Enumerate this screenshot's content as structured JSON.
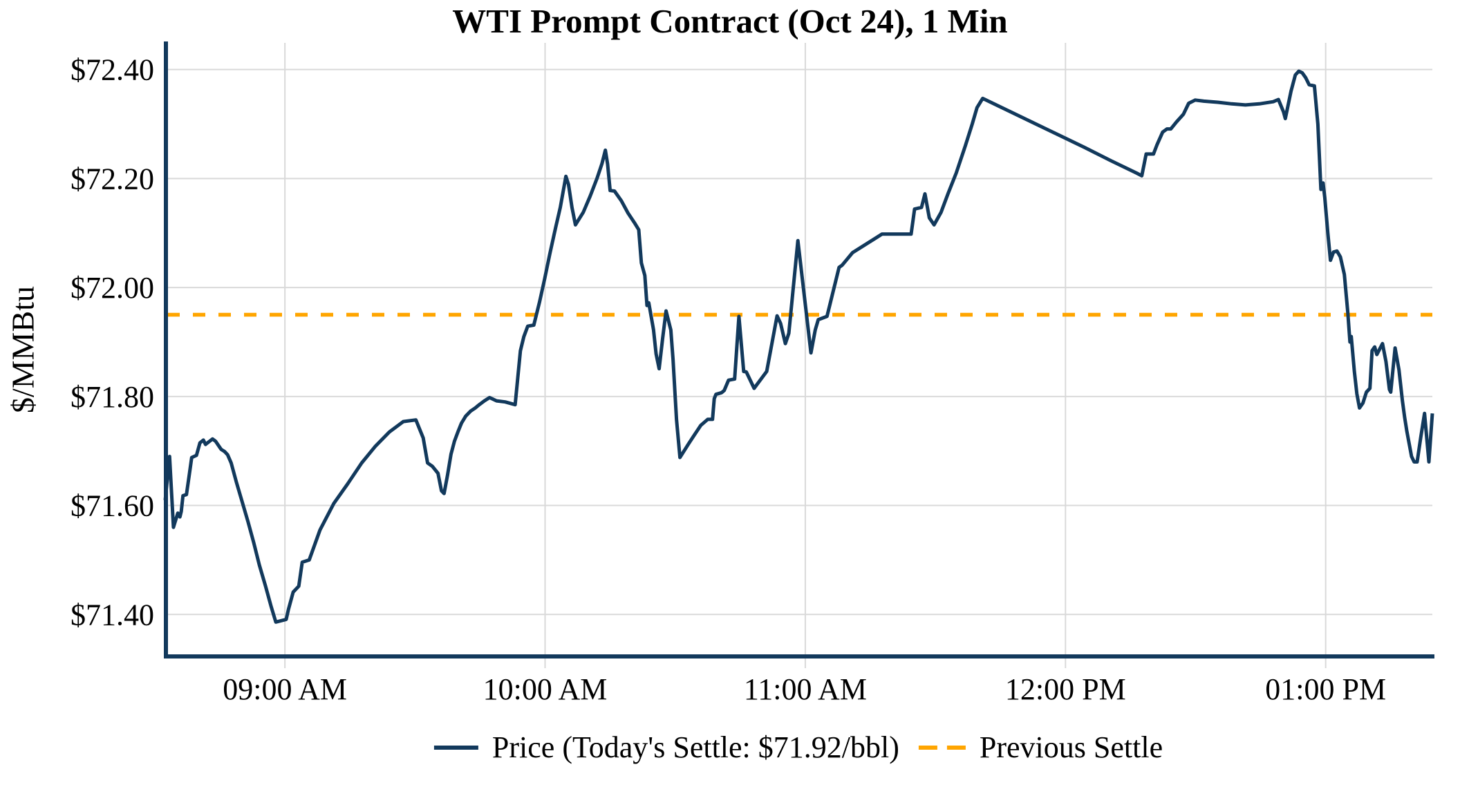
{
  "header": {
    "title": "WTI Prompt Contract (Oct 24), 1 Min"
  },
  "y_axis": {
    "label": "$/MMBtu"
  },
  "legend": {
    "price_label": "Price (Today's Settle: $71.92/bbl)",
    "previous_settle_label": "Previous Settle"
  },
  "colors": {
    "price_line": "#12395c",
    "previous_settle_line": "#ffa500",
    "grid": "#d9d9d9",
    "axis_spine": "#12395c",
    "text": "#000000"
  },
  "chart_data": {
    "type": "line",
    "title": "WTI Prompt Contract (Oct 24), 1 Min",
    "xlabel": "",
    "ylabel": "$/MMBtu",
    "ylim": [
      71.323,
      72.449
    ],
    "xlim_minutes": [
      0,
      292.2
    ],
    "grid": true,
    "legend_position": "bottom-center",
    "todays_settle": 71.92,
    "previous_settle": 71.95,
    "x_ticks": [
      {
        "t": 27.6,
        "label": "09:00 AM"
      },
      {
        "t": 87.6,
        "label": "10:00 AM"
      },
      {
        "t": 147.6,
        "label": "11:00 AM"
      },
      {
        "t": 207.6,
        "label": "12:00 PM"
      },
      {
        "t": 267.6,
        "label": "01:00 PM"
      }
    ],
    "y_ticks": [
      {
        "value": 71.4,
        "label": "$71.40"
      },
      {
        "value": 71.6,
        "label": "$71.60"
      },
      {
        "value": 71.8,
        "label": "$71.80"
      },
      {
        "value": 72.0,
        "label": "$72.00"
      },
      {
        "value": 72.2,
        "label": "$72.20"
      },
      {
        "value": 72.4,
        "label": "$72.40"
      }
    ],
    "series": [
      {
        "name": "Price (Today's Settle: $71.92/bbl)",
        "style": "solid",
        "color": "#12395c",
        "points": [
          [
            0,
            71.61
          ],
          [
            1,
            71.69
          ],
          [
            1.9,
            71.56
          ],
          [
            2.9,
            71.586
          ],
          [
            3.4,
            71.579
          ],
          [
            3.7,
            71.589
          ],
          [
            4.1,
            71.618
          ],
          [
            4.9,
            71.62
          ],
          [
            5.6,
            71.659
          ],
          [
            6.1,
            71.688
          ],
          [
            7.2,
            71.692
          ],
          [
            8,
            71.715
          ],
          [
            8.8,
            71.72
          ],
          [
            9.3,
            71.712
          ],
          [
            10.9,
            71.722
          ],
          [
            11.6,
            71.718
          ],
          [
            12.9,
            71.703
          ],
          [
            13.7,
            71.699
          ],
          [
            14.4,
            71.693
          ],
          [
            15.2,
            71.678
          ],
          [
            16.4,
            71.643
          ],
          [
            17.7,
            71.608
          ],
          [
            19.1,
            71.57
          ],
          [
            20.4,
            71.532
          ],
          [
            21.7,
            71.491
          ],
          [
            23.1,
            71.453
          ],
          [
            24.4,
            71.415
          ],
          [
            25.5,
            71.386
          ],
          [
            27.9,
            71.391
          ],
          [
            28.4,
            71.409
          ],
          [
            29.5,
            71.441
          ],
          [
            30.8,
            71.452
          ],
          [
            31.6,
            71.496
          ],
          [
            33.2,
            71.5
          ],
          [
            35.7,
            71.555
          ],
          [
            38.9,
            71.604
          ],
          [
            42.1,
            71.64
          ],
          [
            45.3,
            71.678
          ],
          [
            48.5,
            71.709
          ],
          [
            51.7,
            71.735
          ],
          [
            54.9,
            71.754
          ],
          [
            57.8,
            71.757
          ],
          [
            59.5,
            71.724
          ],
          [
            60.5,
            71.678
          ],
          [
            61.6,
            71.672
          ],
          [
            62.9,
            71.659
          ],
          [
            63.7,
            71.627
          ],
          [
            64.3,
            71.622
          ],
          [
            65.1,
            71.656
          ],
          [
            65.9,
            71.694
          ],
          [
            66.7,
            71.718
          ],
          [
            67.5,
            71.735
          ],
          [
            68.3,
            71.751
          ],
          [
            69.3,
            71.764
          ],
          [
            70.4,
            71.773
          ],
          [
            71.5,
            71.779
          ],
          [
            72.4,
            71.785
          ],
          [
            73.6,
            71.792
          ],
          [
            74.8,
            71.798
          ],
          [
            76.4,
            71.792
          ],
          [
            78.4,
            71.79
          ],
          [
            80.7,
            71.785
          ],
          [
            81.9,
            71.884
          ],
          [
            82.7,
            71.91
          ],
          [
            83.6,
            71.929
          ],
          [
            85,
            71.931
          ],
          [
            86.3,
            71.973
          ],
          [
            87.5,
            72.016
          ],
          [
            88.7,
            72.062
          ],
          [
            90,
            72.109
          ],
          [
            91.1,
            72.147
          ],
          [
            92.4,
            72.204
          ],
          [
            93,
            72.189
          ],
          [
            93.8,
            72.147
          ],
          [
            94.6,
            72.115
          ],
          [
            96.4,
            72.138
          ],
          [
            98,
            72.168
          ],
          [
            99.6,
            72.201
          ],
          [
            100.7,
            72.227
          ],
          [
            101.5,
            72.252
          ],
          [
            102,
            72.227
          ],
          [
            102.6,
            72.178
          ],
          [
            103.6,
            72.177
          ],
          [
            105.2,
            72.159
          ],
          [
            106.7,
            72.137
          ],
          [
            108.2,
            72.119
          ],
          [
            109.2,
            72.106
          ],
          [
            109.8,
            72.045
          ],
          [
            110.6,
            72.022
          ],
          [
            111.1,
            71.967
          ],
          [
            111.5,
            71.972
          ],
          [
            112.6,
            71.922
          ],
          [
            113.2,
            71.878
          ],
          [
            113.9,
            71.851
          ],
          [
            114.7,
            71.906
          ],
          [
            115.5,
            71.957
          ],
          [
            116.6,
            71.922
          ],
          [
            117.1,
            71.868
          ],
          [
            117.9,
            71.758
          ],
          [
            118.7,
            71.688
          ],
          [
            120.6,
            71.712
          ],
          [
            121.9,
            71.728
          ],
          [
            123.5,
            71.747
          ],
          [
            125.1,
            71.758
          ],
          [
            126.2,
            71.758
          ],
          [
            126.6,
            71.796
          ],
          [
            127,
            71.804
          ],
          [
            128.3,
            71.807
          ],
          [
            128.9,
            71.811
          ],
          [
            129.9,
            71.83
          ],
          [
            131.3,
            71.832
          ],
          [
            132.3,
            71.947
          ],
          [
            133.4,
            71.846
          ],
          [
            134,
            71.845
          ],
          [
            135.8,
            71.815
          ],
          [
            138.7,
            71.846
          ],
          [
            141.1,
            71.948
          ],
          [
            141.9,
            71.934
          ],
          [
            143,
            71.897
          ],
          [
            143.8,
            71.916
          ],
          [
            145.9,
            72.086
          ],
          [
            148.9,
            71.88
          ],
          [
            149.9,
            71.922
          ],
          [
            150.6,
            71.941
          ],
          [
            152.6,
            71.947
          ],
          [
            155.4,
            72.037
          ],
          [
            156.1,
            72.041
          ],
          [
            158.5,
            72.064
          ],
          [
            165.3,
            72.098
          ],
          [
            172,
            72.098
          ],
          [
            172.8,
            72.144
          ],
          [
            174.4,
            72.147
          ],
          [
            175.2,
            72.172
          ],
          [
            176.2,
            72.128
          ],
          [
            177.3,
            72.115
          ],
          [
            178.9,
            72.138
          ],
          [
            180.5,
            72.172
          ],
          [
            182.4,
            72.21
          ],
          [
            184.5,
            72.26
          ],
          [
            186.1,
            72.3
          ],
          [
            187.2,
            72.33
          ],
          [
            188.5,
            72.347
          ],
          [
            194,
            72.326
          ],
          [
            200,
            72.303
          ],
          [
            206,
            72.28
          ],
          [
            212,
            72.257
          ],
          [
            218,
            72.233
          ],
          [
            224,
            72.21
          ],
          [
            225.2,
            72.205
          ],
          [
            226.2,
            72.245
          ],
          [
            227.9,
            72.245
          ],
          [
            228.7,
            72.262
          ],
          [
            230,
            72.285
          ],
          [
            231,
            72.291
          ],
          [
            231.9,
            72.291
          ],
          [
            233.2,
            72.304
          ],
          [
            234.8,
            72.318
          ],
          [
            236,
            72.338
          ],
          [
            237.5,
            72.344
          ],
          [
            239.5,
            72.342
          ],
          [
            242.7,
            72.34
          ],
          [
            245.9,
            72.337
          ],
          [
            249.1,
            72.335
          ],
          [
            252.3,
            72.337
          ],
          [
            255.5,
            72.341
          ],
          [
            256.7,
            72.345
          ],
          [
            257.9,
            72.322
          ],
          [
            258.3,
            72.31
          ],
          [
            259.6,
            72.36
          ],
          [
            260.6,
            72.39
          ],
          [
            261.4,
            72.397
          ],
          [
            262.2,
            72.394
          ],
          [
            263,
            72.385
          ],
          [
            263.8,
            72.372
          ],
          [
            265,
            72.37
          ],
          [
            265.8,
            72.3
          ],
          [
            266.5,
            72.18
          ],
          [
            267,
            72.192
          ],
          [
            267.4,
            72.165
          ],
          [
            268.1,
            72.1
          ],
          [
            268.7,
            72.05
          ],
          [
            269.4,
            72.065
          ],
          [
            270.2,
            72.067
          ],
          [
            271,
            72.056
          ],
          [
            271.9,
            72.024
          ],
          [
            272.7,
            71.954
          ],
          [
            273.2,
            71.9
          ],
          [
            273.5,
            71.91
          ],
          [
            274.2,
            71.847
          ],
          [
            274.8,
            71.805
          ],
          [
            275.4,
            71.779
          ],
          [
            276.2,
            71.788
          ],
          [
            277,
            71.808
          ],
          [
            277.8,
            71.815
          ],
          [
            278.3,
            71.884
          ],
          [
            278.9,
            71.891
          ],
          [
            279.4,
            71.877
          ],
          [
            280.7,
            71.897
          ],
          [
            281.5,
            71.864
          ],
          [
            282.3,
            71.813
          ],
          [
            282.6,
            71.808
          ],
          [
            283.6,
            71.889
          ],
          [
            284.5,
            71.849
          ],
          [
            285.3,
            71.792
          ],
          [
            285.8,
            71.762
          ],
          [
            286.3,
            71.737
          ],
          [
            287.4,
            71.69
          ],
          [
            288,
            71.68
          ],
          [
            288.7,
            71.68
          ],
          [
            289.5,
            71.724
          ],
          [
            290.4,
            71.769
          ],
          [
            291.4,
            71.68
          ],
          [
            292.2,
            71.769
          ]
        ]
      },
      {
        "name": "Previous Settle",
        "style": "dashed",
        "color": "#ffa500",
        "value": 71.95
      }
    ]
  }
}
